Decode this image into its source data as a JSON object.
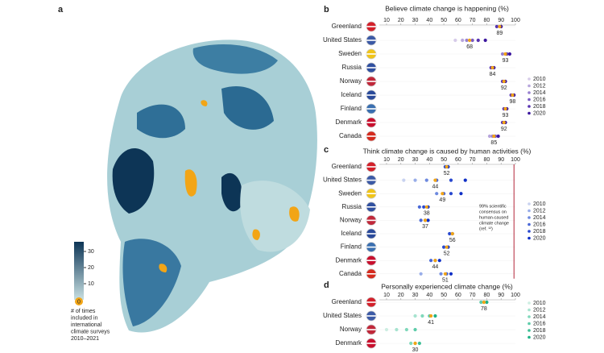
{
  "panel_labels": [
    "a",
    "b",
    "c",
    "d"
  ],
  "chart_data": [
    {
      "type": "map",
      "legend_lines": [
        "# of times",
        "included in",
        "international",
        "climate surveys",
        "2010–2021"
      ],
      "colorbar_lim": [
        0,
        36
      ],
      "colorbar_ticks": [
        10,
        20,
        30
      ],
      "colors": [
        "#c8e0e2",
        "#0d3556"
      ],
      "no_data_color": "#f2a516",
      "no_data_label": "0"
    },
    {
      "type": "dot",
      "title": "Believe climate change is happening (%)",
      "categories": [
        "Greenland",
        "United States",
        "Sweden",
        "Russia",
        "Norway",
        "Iceland",
        "Finland",
        "Denmark",
        "Canada"
      ],
      "xlim": [
        5,
        100
      ],
      "xticks": [
        10,
        20,
        30,
        40,
        50,
        60,
        70,
        80,
        90,
        100
      ],
      "series": [
        {
          "name": "2010",
          "color": "#d6cbe9",
          "values": [
            null,
            58,
            null,
            null,
            null,
            null,
            null,
            null,
            null
          ]
        },
        {
          "name": "2012",
          "color": "#b7a6dc",
          "values": [
            null,
            63,
            null,
            null,
            null,
            null,
            null,
            null,
            82
          ]
        },
        {
          "name": "2014",
          "color": "#977fcf",
          "values": [
            null,
            66,
            91,
            null,
            null,
            null,
            null,
            null,
            84
          ]
        },
        {
          "name": "2016",
          "color": "#7859c2",
          "values": [
            null,
            70,
            93,
            null,
            null,
            null,
            null,
            null,
            86
          ]
        },
        {
          "name": "2018",
          "color": "#5833b1",
          "values": [
            87,
            74,
            94,
            83,
            91,
            97,
            92,
            91,
            null
          ]
        },
        {
          "name": "2020",
          "color": "#3b169e",
          "values": [
            90,
            79,
            96,
            85,
            93,
            99,
            94,
            93,
            88
          ]
        }
      ],
      "average_color": "#f2a516",
      "average": [
        89,
        68,
        93,
        84,
        92,
        98,
        93,
        92,
        85
      ]
    },
    {
      "type": "dot",
      "title": "Think climate change is caused by human activities (%)",
      "categories": [
        "Greenland",
        "United States",
        "Sweden",
        "Russia",
        "Norway",
        "Iceland",
        "Finland",
        "Denmark",
        "Canada"
      ],
      "xlim": [
        5,
        100
      ],
      "xticks": [
        10,
        20,
        30,
        40,
        50,
        60,
        70,
        80,
        90,
        100
      ],
      "series": [
        {
          "name": "2010",
          "color": "#c8d2f0",
          "values": [
            null,
            22,
            null,
            null,
            null,
            null,
            null,
            null,
            null
          ]
        },
        {
          "name": "2012",
          "color": "#98ade9",
          "values": [
            null,
            30,
            null,
            null,
            null,
            null,
            null,
            null,
            34
          ]
        },
        {
          "name": "2014",
          "color": "#6d89df",
          "values": [
            null,
            38,
            45,
            null,
            null,
            null,
            null,
            null,
            48
          ]
        },
        {
          "name": "2016",
          "color": "#4867d7",
          "values": [
            null,
            45,
            50,
            33,
            34,
            null,
            null,
            41,
            52
          ]
        },
        {
          "name": "2018",
          "color": "#2848cf",
          "values": [
            51,
            55,
            55,
            36,
            37,
            54,
            50,
            44,
            null
          ]
        },
        {
          "name": "2020",
          "color": "#0f2fc6",
          "values": [
            53,
            65,
            62,
            39,
            39,
            56,
            53,
            47,
            55
          ]
        }
      ],
      "average_color": "#f2a516",
      "average": [
        52,
        44,
        49,
        38,
        37,
        56,
        52,
        44,
        51
      ],
      "consensus": {
        "value": 99,
        "color": "#b3263a",
        "label_lines": [
          "99% scientific",
          "consensus on",
          "human-caused",
          "climate change",
          "(ref. ¹²)"
        ]
      }
    },
    {
      "type": "dot",
      "title": "Personally experienced climate change (%)",
      "categories": [
        "Greenland",
        "United States",
        "Norway",
        "Denmark"
      ],
      "xlim": [
        5,
        100
      ],
      "xticks": [
        10,
        20,
        30,
        40,
        50,
        60,
        70,
        80,
        90,
        100
      ],
      "series": [
        {
          "name": "2010",
          "color": "#cdeee2",
          "values": [
            null,
            null,
            10,
            null
          ]
        },
        {
          "name": "2012",
          "color": "#a6e3cf",
          "values": [
            null,
            30,
            17,
            null
          ]
        },
        {
          "name": "2014",
          "color": "#7fd8bb",
          "values": [
            null,
            35,
            24,
            27
          ]
        },
        {
          "name": "2016",
          "color": "#5ccca9",
          "values": [
            76,
            40,
            30,
            30
          ]
        },
        {
          "name": "2018",
          "color": "#3dbf96",
          "values": [
            78,
            null,
            null,
            33
          ]
        },
        {
          "name": "2020",
          "color": "#1fb286",
          "values": [
            80,
            44,
            null,
            null
          ]
        }
      ],
      "average_color": "#f2a516",
      "average": [
        78,
        41,
        null,
        30
      ]
    }
  ]
}
